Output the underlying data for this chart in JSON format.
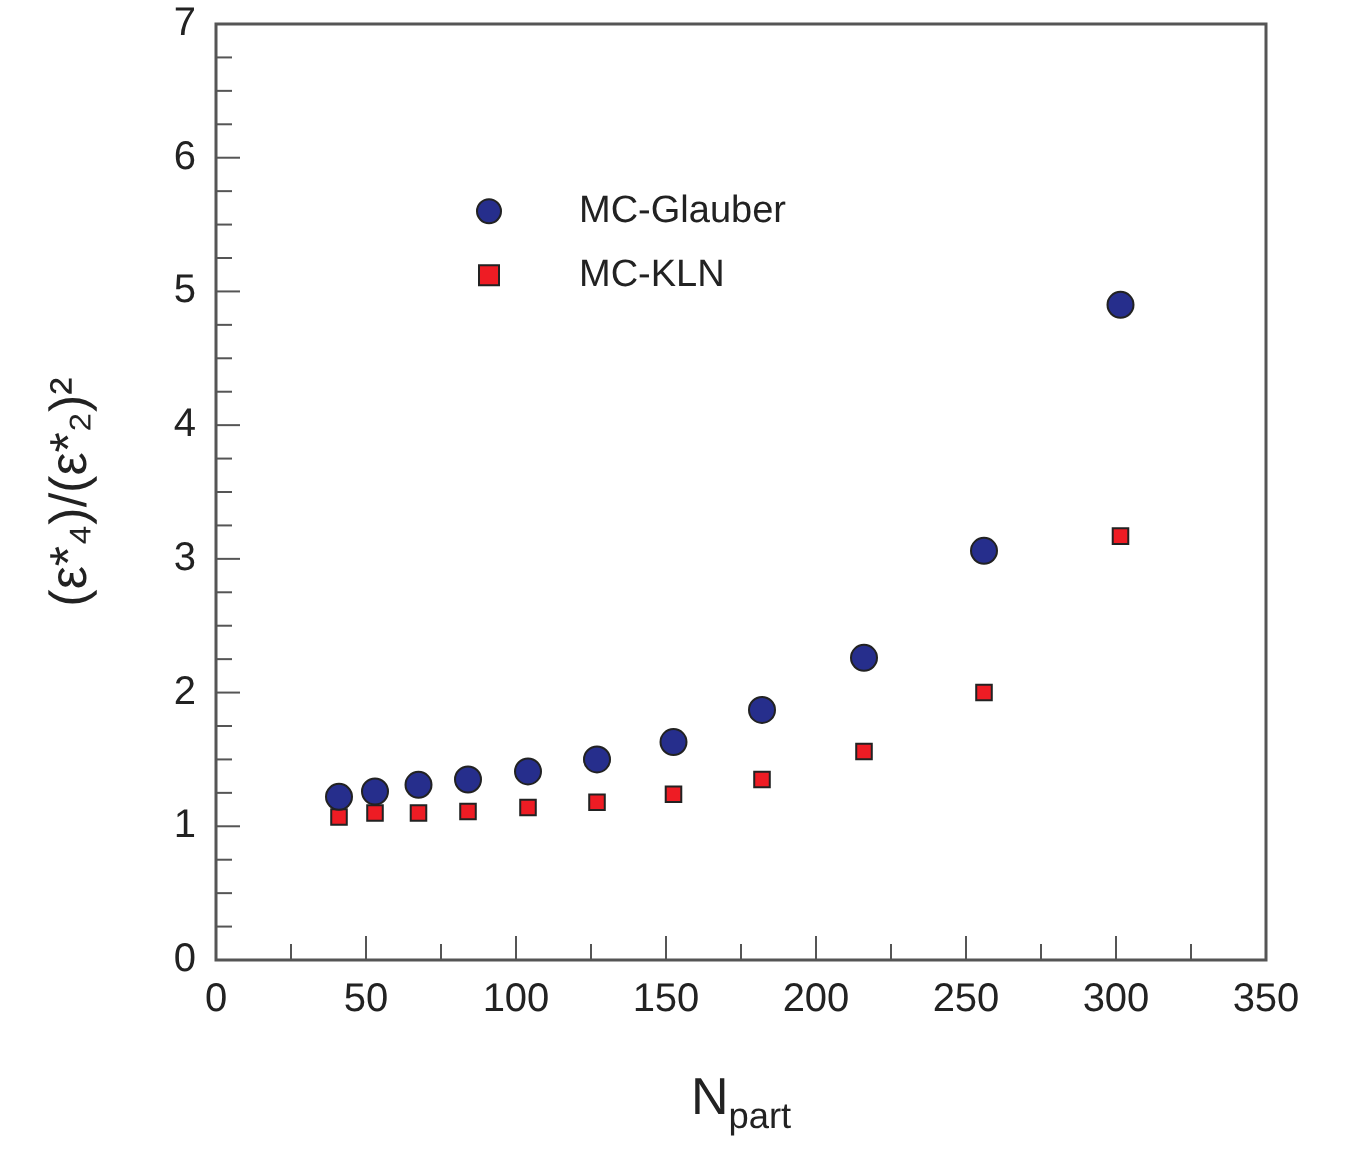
{
  "chart_data": {
    "type": "scatter",
    "xlabel": "N$_{part}$",
    "ylabel": "(ε*₄)/(ε*₂)²",
    "xlim": [
      0,
      350
    ],
    "ylim": [
      0,
      7
    ],
    "xticks": [
      0,
      {
        "value": 25,
        "label": null
      },
      50,
      {
        "value": 75,
        "label": null
      },
      100,
      {
        "value": 125,
        "label": null
      },
      150,
      {
        "value": 175,
        "label": null
      },
      200,
      {
        "value": 225,
        "label": null
      },
      250,
      {
        "value": 275,
        "label": null
      },
      300,
      {
        "value": 325,
        "label": null
      },
      350
    ],
    "yticks": [
      0,
      {
        "value": 0.25,
        "label": null
      },
      {
        "value": 0.5,
        "label": null
      },
      {
        "value": 0.75,
        "label": null
      },
      1,
      {
        "value": 1.25,
        "label": null
      },
      {
        "value": 1.5,
        "label": null
      },
      {
        "value": 1.75,
        "label": null
      },
      2,
      {
        "value": 2.25,
        "label": null
      },
      {
        "value": 2.5,
        "label": null
      },
      {
        "value": 2.75,
        "label": null
      },
      3,
      {
        "value": 3.25,
        "label": null
      },
      {
        "value": 3.5,
        "label": null
      },
      {
        "value": 3.75,
        "label": null
      },
      4,
      {
        "value": 4.25,
        "label": null
      },
      {
        "value": 4.5,
        "label": null
      },
      {
        "value": 4.75,
        "label": null
      },
      5,
      {
        "value": 5.25,
        "label": null
      },
      {
        "value": 5.5,
        "label": null
      },
      {
        "value": 5.75,
        "label": null
      },
      6,
      {
        "value": 6.25,
        "label": null
      },
      {
        "value": 6.5,
        "label": null
      },
      {
        "value": 6.75,
        "label": null
      },
      7
    ],
    "grid": false,
    "legend": "top",
    "series": [
      {
        "name": "MC-Glauber",
        "color": "#262e8c",
        "marker": "circle",
        "x": [
          41,
          53,
          67.5,
          84,
          104,
          127,
          152.5,
          182,
          216,
          256,
          301.5
        ],
        "values": [
          1.22,
          1.26,
          1.31,
          1.35,
          1.41,
          1.5,
          1.63,
          1.87,
          2.26,
          3.06,
          4.9
        ]
      },
      {
        "name": "MC-KLN",
        "color": "#ee1c24",
        "marker": "square",
        "x": [
          41,
          53,
          67.5,
          84,
          104,
          127,
          152.5,
          182,
          216,
          256,
          301.5
        ],
        "values": [
          1.07,
          1.1,
          1.1,
          1.11,
          1.14,
          1.18,
          1.24,
          1.35,
          1.56,
          2.0,
          3.17
        ]
      }
    ]
  }
}
